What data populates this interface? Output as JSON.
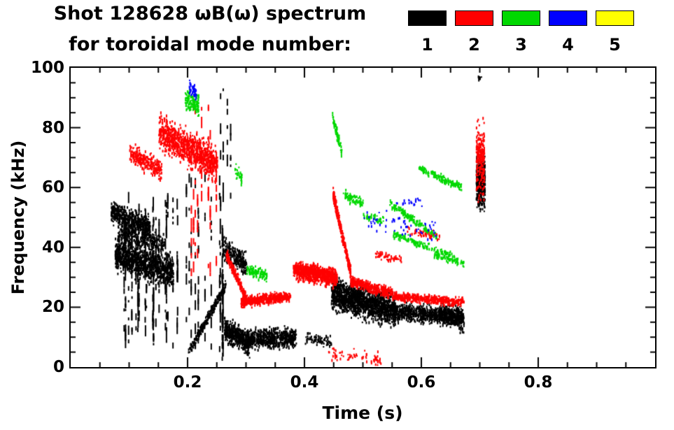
{
  "chart_data": {
    "type": "scatter",
    "title": "Shot 128628 ωB(ω) spectrum",
    "subtitle": "for toroidal mode number:",
    "xlabel": "Time (s)",
    "ylabel": "Frequency (kHz)",
    "xlim": [
      0,
      1.0
    ],
    "ylim": [
      0,
      100
    ],
    "xticks": [
      0.2,
      0.4,
      0.6,
      0.8
    ],
    "xtick_labels": [
      "0.2",
      "0.4",
      "0.6",
      "0.8"
    ],
    "yticks": [
      0,
      20,
      40,
      60,
      80,
      100
    ],
    "ytick_labels": [
      "0",
      "20",
      "40",
      "60",
      "80",
      "100"
    ],
    "x_minor_step": 0.05,
    "y_minor_step": 5,
    "grid": false,
    "legend": {
      "position": "top-right",
      "entries": [
        {
          "label": "1",
          "color": "#000000"
        },
        {
          "label": "2",
          "color": "#ff0000"
        },
        {
          "label": "3",
          "color": "#00d800"
        },
        {
          "label": "4",
          "color": "#0000ff"
        },
        {
          "label": "5",
          "color": "#ffff00"
        }
      ]
    },
    "series": [
      {
        "name": "toroidal mode n=1",
        "color": "#000000",
        "clusters": [
          {
            "k": "b",
            "t": [
              0.068,
              0.135
            ],
            "f": [
              52,
              47
            ],
            "s": 4,
            "n": 500
          },
          {
            "k": "b",
            "t": [
              0.075,
              0.175
            ],
            "f": [
              38,
              32
            ],
            "s": 5.5,
            "n": 1100
          },
          {
            "k": "b",
            "t": [
              0.08,
              0.16
            ],
            "f": [
              45,
              42
            ],
            "s": 3,
            "n": 300
          },
          {
            "k": "v",
            "t": [
              0.085,
              0.19
            ],
            "f": [
              6,
              56
            ],
            "cols": 26,
            "per": 9
          },
          {
            "k": "v",
            "t": [
              0.19,
              0.27
            ],
            "f": [
              4,
              62
            ],
            "cols": 9,
            "per": 7
          },
          {
            "k": "b",
            "t": [
              0.2,
              0.265
            ],
            "f": [
              5,
              28
            ],
            "s": 1.6,
            "n": 260
          },
          {
            "k": "v",
            "t": [
              0.252,
              0.263
            ],
            "f": [
              2,
              46
            ],
            "cols": 4,
            "per": 14
          },
          {
            "k": "b",
            "t": [
              0.258,
              0.3
            ],
            "f": [
              40,
              34
            ],
            "s": 4,
            "n": 260
          },
          {
            "k": "b",
            "t": [
              0.262,
              0.305
            ],
            "f": [
              13,
              8
            ],
            "s": 4,
            "n": 500
          },
          {
            "k": "b",
            "t": [
              0.3,
              0.385
            ],
            "f": [
              10,
              10
            ],
            "s": 3.5,
            "n": 650
          },
          {
            "k": "v",
            "t": [
              0.245,
              0.29
            ],
            "f": [
              52,
              95
            ],
            "cols": 4,
            "per": 6
          },
          {
            "k": "b",
            "t": [
              0.4,
              0.445
            ],
            "f": [
              10,
              9
            ],
            "s": 2,
            "n": 80
          },
          {
            "k": "b",
            "t": [
              0.445,
              0.555
            ],
            "f": [
              25,
              19
            ],
            "s": 5.5,
            "n": 1600
          },
          {
            "k": "b",
            "t": [
              0.55,
              0.672
            ],
            "f": [
              19,
              17
            ],
            "s": 3,
            "n": 800
          },
          {
            "k": "b",
            "t": [
              0.63,
              0.672
            ],
            "f": [
              18,
              16
            ],
            "s": 4,
            "n": 220
          },
          {
            "k": "b",
            "t": [
              0.693,
              0.708
            ],
            "f": [
              63,
              62
            ],
            "s": 9,
            "n": 420
          },
          {
            "k": "b",
            "t": [
              0.696,
              0.703
            ],
            "f": [
              97,
              96
            ],
            "s": 1,
            "n": 10
          }
        ]
      },
      {
        "name": "toroidal mode n=2",
        "color": "#ff0000",
        "clusters": [
          {
            "k": "b",
            "t": [
              0.1,
              0.155
            ],
            "f": [
              72,
              66
            ],
            "s": 3.5,
            "n": 260
          },
          {
            "k": "b",
            "t": [
              0.15,
              0.25
            ],
            "f": [
              79,
              68
            ],
            "s": 6,
            "n": 1000
          },
          {
            "k": "v",
            "t": [
              0.205,
              0.26
            ],
            "f": [
              30,
              86
            ],
            "cols": 8,
            "per": 8
          },
          {
            "k": "b",
            "t": [
              0.265,
              0.3
            ],
            "f": [
              38,
              23
            ],
            "s": 1.8,
            "n": 260
          },
          {
            "k": "b",
            "t": [
              0.29,
              0.375
            ],
            "f": [
              22,
              24
            ],
            "s": 1.8,
            "n": 480
          },
          {
            "k": "b",
            "t": [
              0.38,
              0.455
            ],
            "f": [
              33,
              30
            ],
            "s": 3,
            "n": 900
          },
          {
            "k": "b",
            "t": [
              0.448,
              0.478
            ],
            "f": [
              58,
              32
            ],
            "s": 2.2,
            "n": 330
          },
          {
            "k": "b",
            "t": [
              0.478,
              0.55
            ],
            "f": [
              29,
              25
            ],
            "s": 1.8,
            "n": 420
          },
          {
            "k": "b",
            "t": [
              0.55,
              0.672
            ],
            "f": [
              24,
              22
            ],
            "s": 1.5,
            "n": 480
          },
          {
            "k": "b",
            "t": [
              0.44,
              0.53
            ],
            "f": [
              5,
              3
            ],
            "s": 2.2,
            "n": 70
          },
          {
            "k": "b",
            "t": [
              0.52,
              0.565
            ],
            "f": [
              38,
              36
            ],
            "s": 1.5,
            "n": 60
          },
          {
            "k": "b",
            "t": [
              0.575,
              0.63
            ],
            "f": [
              46,
              44
            ],
            "s": 1.5,
            "n": 50
          },
          {
            "k": "b",
            "t": [
              0.693,
              0.707
            ],
            "f": [
              70,
              69
            ],
            "s": 12,
            "n": 260
          }
        ]
      },
      {
        "name": "toroidal mode n=3",
        "color": "#00d800",
        "clusters": [
          {
            "k": "b",
            "t": [
              0.195,
              0.218
            ],
            "f": [
              90,
              87
            ],
            "s": 4,
            "n": 120
          },
          {
            "k": "b",
            "t": [
              0.28,
              0.292
            ],
            "f": [
              66,
              63
            ],
            "s": 3,
            "n": 30
          },
          {
            "k": "b",
            "t": [
              0.3,
              0.335
            ],
            "f": [
              33,
              31
            ],
            "s": 2.2,
            "n": 110
          },
          {
            "k": "b",
            "t": [
              0.447,
              0.463
            ],
            "f": [
              84,
              72
            ],
            "s": 2,
            "n": 80
          },
          {
            "k": "b",
            "t": [
              0.465,
              0.5
            ],
            "f": [
              58,
              55
            ],
            "s": 1.8,
            "n": 80
          },
          {
            "k": "b",
            "t": [
              0.5,
              0.535
            ],
            "f": [
              51,
              49
            ],
            "s": 1.5,
            "n": 45
          },
          {
            "k": "b",
            "t": [
              0.545,
              0.625
            ],
            "f": [
              55,
              44
            ],
            "s": 1.3,
            "n": 150
          },
          {
            "k": "b",
            "t": [
              0.55,
              0.655
            ],
            "f": [
              45,
              37
            ],
            "s": 1.3,
            "n": 150
          },
          {
            "k": "b",
            "t": [
              0.595,
              0.668
            ],
            "f": [
              67,
              60
            ],
            "s": 1.3,
            "n": 150
          },
          {
            "k": "b",
            "t": [
              0.62,
              0.672
            ],
            "f": [
              38,
              35
            ],
            "s": 1.1,
            "n": 70
          }
        ]
      },
      {
        "name": "toroidal mode n=4",
        "color": "#0000ff",
        "clusters": [
          {
            "k": "b",
            "t": [
              0.202,
              0.214
            ],
            "f": [
              94,
              92
            ],
            "s": 2.5,
            "n": 45
          },
          {
            "k": "b",
            "t": [
              0.5,
              0.625
            ],
            "f": [
              50,
              46
            ],
            "s": 4,
            "n": 55
          },
          {
            "k": "b",
            "t": [
              0.555,
              0.6
            ],
            "f": [
              56,
              55
            ],
            "s": 1.5,
            "n": 20
          }
        ]
      },
      {
        "name": "toroidal mode n=5",
        "color": "#ffff00",
        "clusters": []
      }
    ]
  }
}
